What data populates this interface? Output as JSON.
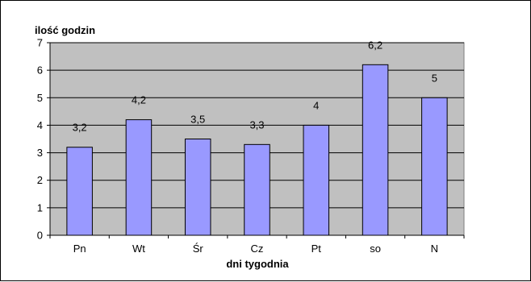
{
  "chart_data": {
    "type": "bar",
    "ylabel": "ilość godzin",
    "xlabel": "dni tygodnia",
    "categories": [
      "Pn",
      "Wt",
      "Śr",
      "Cz",
      "Pt",
      "so",
      "N"
    ],
    "values": [
      3.2,
      4.2,
      3.5,
      3.3,
      4,
      6.2,
      5
    ],
    "data_labels": [
      "3,2",
      "4,2",
      "3,5",
      "3,3",
      "4",
      "6,2",
      "5"
    ],
    "ylim": [
      0,
      7
    ],
    "yticks": [
      0,
      1,
      2,
      3,
      4,
      5,
      6,
      7
    ],
    "grid": true,
    "legend": "none",
    "colors": {
      "plot_background": "#c0c0c0",
      "bar_fill": "#9999ff",
      "bar_stroke": "#000000",
      "gridline": "#000000"
    }
  }
}
